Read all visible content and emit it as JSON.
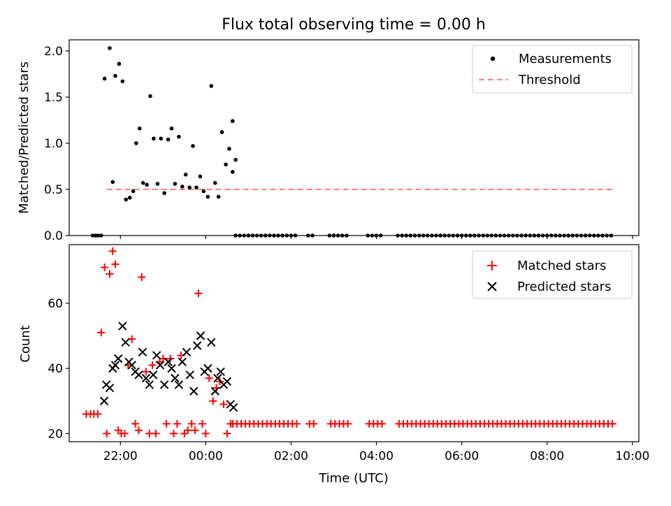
{
  "chart_data": [
    {
      "type": "scatter",
      "title": "Flux total observing time = 0.00 h",
      "ylabel": "Matched/Predicted stars",
      "xlabel": "",
      "ylim": [
        0,
        2.12
      ],
      "yticks": [
        "0.0",
        "0.5",
        "1.0",
        "1.5",
        "2.0"
      ],
      "yticks_values": [
        0,
        0.5,
        1.0,
        1.5,
        2.0
      ],
      "xticks_hours": [
        22,
        24,
        26,
        28,
        30,
        32,
        34
      ],
      "legend": [
        "Measurements",
        "Threshold"
      ],
      "legend_position": "top-right",
      "threshold": {
        "value": 0.5,
        "x_start": 21.68,
        "x_end": 33.53,
        "color": "#ff7f7f"
      },
      "series": [
        {
          "name": "Measurements",
          "color": "#000000",
          "x": [
            21.35,
            21.42,
            21.48,
            21.55,
            21.63,
            21.75,
            21.82,
            21.88,
            21.97,
            22.05,
            22.13,
            22.22,
            22.3,
            22.37,
            22.45,
            22.53,
            22.62,
            22.7,
            22.78,
            22.87,
            22.95,
            23.03,
            23.12,
            23.2,
            23.28,
            23.37,
            23.45,
            23.53,
            23.62,
            23.7,
            23.78,
            23.87,
            23.95,
            24.05,
            24.13,
            24.22,
            24.3,
            24.38,
            24.47,
            24.55,
            24.63
          ],
          "y": [
            0,
            0,
            0,
            0,
            1.7,
            2.03,
            0.58,
            1.73,
            1.86,
            1.67,
            0.39,
            0.41,
            0.48,
            1.0,
            1.16,
            0.57,
            0.55,
            1.51,
            1.05,
            0.56,
            1.05,
            0.46,
            1.04,
            1.16,
            0.56,
            1.07,
            0.53,
            0.66,
            0.52,
            0.97,
            0.52,
            0.64,
            0.48,
            0.42,
            1.62,
            0.57,
            0.42,
            1.12,
            0.77,
            0.94,
            1.24
          ]
        },
        {
          "name": "Measurements (tail)",
          "color": "#000000",
          "x": [
            24.63,
            24.7
          ],
          "y": [
            0.69,
            0.82
          ]
        }
      ],
      "zero_points": {
        "x_start": 24.7,
        "x_end": 33.53,
        "step": 0.1,
        "gaps": [
          [
            26.2,
            26.35
          ],
          [
            26.55,
            26.85
          ],
          [
            27.4,
            27.75
          ],
          [
            28.15,
            28.45
          ]
        ],
        "y": 0
      }
    },
    {
      "type": "scatter",
      "title": "",
      "ylabel": "Count",
      "xlabel": "Time (UTC)",
      "ylim": [
        17.5,
        78
      ],
      "yticks": [
        "20",
        "40",
        "60"
      ],
      "yticks_values": [
        20,
        40,
        60
      ],
      "xticks": [
        "22:00",
        "00:00",
        "02:00",
        "04:00",
        "06:00",
        "08:00",
        "10:00"
      ],
      "xticks_hours": [
        22,
        24,
        26,
        28,
        30,
        32,
        34
      ],
      "legend": [
        "Matched stars",
        "Predicted stars"
      ],
      "legend_position": "top-right",
      "series": [
        {
          "name": "Matched stars",
          "color": "#ff0000",
          "marker": "plus",
          "x": [
            21.2,
            21.3,
            21.38,
            21.47,
            21.55,
            21.63,
            21.68,
            21.75,
            21.82,
            21.88,
            21.95,
            22.02,
            22.1,
            22.18,
            22.27,
            22.35,
            22.43,
            22.5,
            22.6,
            22.68,
            22.75,
            22.83,
            22.92,
            23.0,
            23.08,
            23.17,
            23.25,
            23.33,
            23.42,
            23.5,
            23.58,
            23.67,
            23.75,
            23.83,
            23.92,
            24.0,
            24.08,
            24.17,
            24.25,
            24.33,
            24.42,
            24.5,
            24.58,
            24.63
          ],
          "y": [
            26,
            26,
            26,
            26,
            51,
            71,
            20,
            69,
            76,
            72,
            21,
            20,
            20,
            41,
            49,
            23,
            21,
            68,
            39,
            20,
            41,
            20,
            42,
            43,
            23,
            43,
            20,
            23,
            44,
            20,
            21,
            23,
            21,
            63,
            23,
            20,
            37,
            30,
            34,
            36,
            29,
            20,
            23,
            23
          ]
        },
        {
          "name": "Predicted stars",
          "color": "#000000",
          "marker": "x",
          "x": [
            21.62,
            21.67,
            21.75,
            21.82,
            21.88,
            21.95,
            22.05,
            22.12,
            22.2,
            22.27,
            22.35,
            22.43,
            22.52,
            22.6,
            22.68,
            22.77,
            22.85,
            22.93,
            23.03,
            23.12,
            23.2,
            23.28,
            23.37,
            23.45,
            23.55,
            23.63,
            23.72,
            23.8,
            23.88,
            23.97,
            24.05,
            24.13,
            24.22,
            24.28,
            24.35,
            24.42,
            24.5,
            24.58,
            24.65
          ],
          "y": [
            30,
            35,
            34,
            40,
            41,
            43,
            53,
            48,
            42,
            41,
            39,
            38,
            45,
            37,
            35,
            38,
            44,
            41,
            35,
            42,
            40,
            37,
            35,
            42,
            45,
            38,
            33,
            47,
            50,
            39,
            40,
            48,
            33,
            37,
            39,
            35,
            36,
            29,
            28
          ]
        }
      ],
      "matched_tail": {
        "x_start": 24.63,
        "x_end": 33.53,
        "step": 0.1,
        "gaps": [
          [
            26.2,
            26.35
          ],
          [
            26.55,
            26.85
          ],
          [
            27.4,
            27.75
          ],
          [
            28.15,
            28.45
          ]
        ],
        "y": 23
      }
    }
  ]
}
